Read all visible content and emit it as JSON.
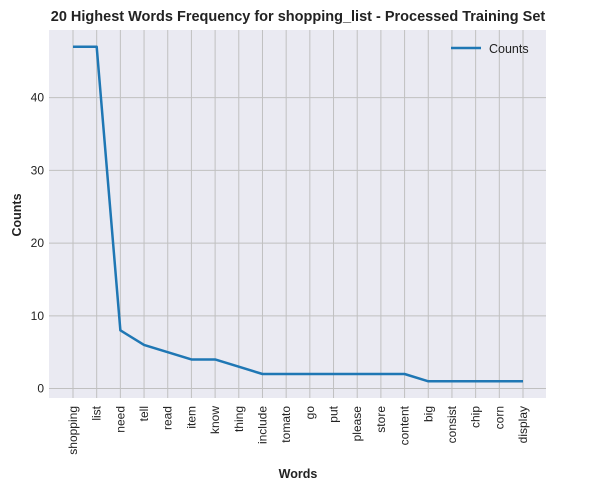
{
  "chart_data": {
    "type": "line",
    "title": "20 Highest Words Frequency for shopping_list - Processed Training Set",
    "xlabel": "Words",
    "ylabel": "Counts",
    "categories": [
      "shopping",
      "list",
      "need",
      "tell",
      "read",
      "item",
      "know",
      "thing",
      "include",
      "tomato",
      "go",
      "put",
      "please",
      "store",
      "content",
      "big",
      "consist",
      "chip",
      "corn",
      "display"
    ],
    "series": [
      {
        "name": "Counts",
        "values": [
          47,
          47,
          8,
          6,
          5,
          4,
          4,
          3,
          2,
          2,
          2,
          2,
          2,
          2,
          2,
          1,
          1,
          1,
          1,
          1
        ],
        "color": "#1f77b4"
      }
    ],
    "yticks": [
      0,
      10,
      20,
      30,
      40
    ],
    "ylim": [
      -1.3,
      49.3
    ],
    "grid": true,
    "legend_position": "top-right",
    "background_color": "#eaeaf2",
    "grid_color": "#c0c0c0"
  }
}
